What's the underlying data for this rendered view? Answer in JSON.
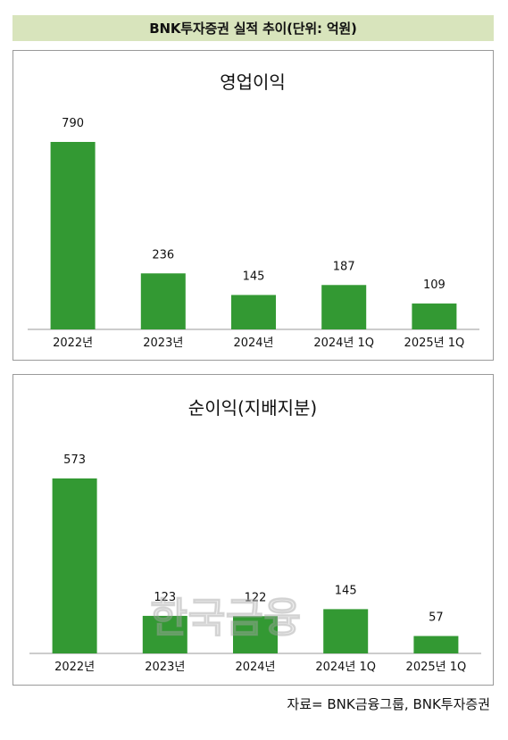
{
  "header": {
    "title": "BNK투자증권 실적 추이(단위: 억원)"
  },
  "colors": {
    "bar": "#339933",
    "header_bg": "#d8e4bc"
  },
  "chart_data": [
    {
      "type": "bar",
      "title": "영업이익",
      "categories": [
        "2022년",
        "2023년",
        "2024년",
        "2024년 1Q",
        "2025년 1Q"
      ],
      "values": [
        790,
        236,
        145,
        187,
        109
      ],
      "ylim": [
        0,
        790
      ],
      "grid": false,
      "legend": "none"
    },
    {
      "type": "bar",
      "title": "순이익(지배지분)",
      "categories": [
        "2022년",
        "2023년",
        "2024년",
        "2024년 1Q",
        "2025년 1Q"
      ],
      "values": [
        573,
        123,
        122,
        145,
        57
      ],
      "ylim": [
        0,
        573
      ],
      "grid": false,
      "legend": "none"
    }
  ],
  "watermark": {
    "text": "한국금융"
  },
  "footer": {
    "source": "자료= BNK금융그룹, BNK투자증권"
  }
}
